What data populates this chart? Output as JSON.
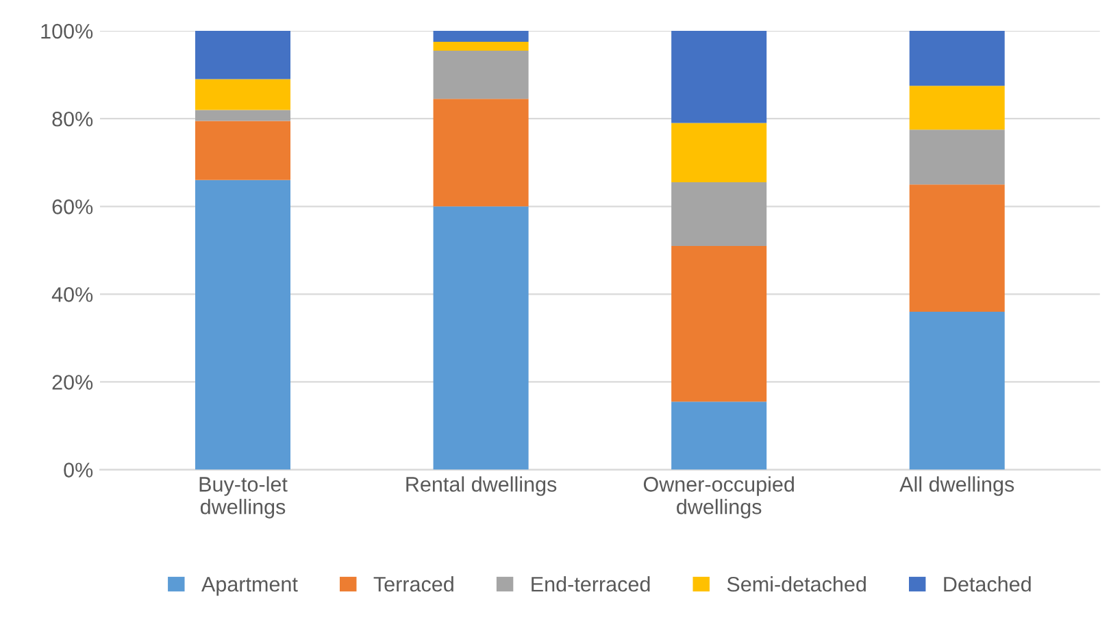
{
  "chart_data": {
    "type": "bar",
    "stacked": true,
    "categories": [
      "Buy-to-let\ndwellings",
      "Rental dwellings",
      "Owner-occupied\ndwellings",
      "All dwellings"
    ],
    "series": [
      {
        "name": "Apartment",
        "color": "#5b9bd5",
        "values": [
          66,
          60,
          15.5,
          36
        ]
      },
      {
        "name": "Terraced",
        "color": "#ed7d31",
        "values": [
          13.5,
          24.5,
          35.5,
          29
        ]
      },
      {
        "name": "End-terraced",
        "color": "#a5a5a5",
        "values": [
          2.5,
          11,
          14.5,
          12.5
        ]
      },
      {
        "name": "Semi-detached",
        "color": "#ffc000",
        "values": [
          7,
          2,
          13.5,
          10
        ]
      },
      {
        "name": "Detached",
        "color": "#4472c4",
        "values": [
          11,
          2.5,
          21,
          12.5
        ]
      }
    ],
    "ylim": [
      0,
      100
    ],
    "yticks": [
      {
        "value": 0,
        "label": "0%"
      },
      {
        "value": 20,
        "label": "20%"
      },
      {
        "value": 40,
        "label": "40%"
      },
      {
        "value": 60,
        "label": "60%"
      },
      {
        "value": 80,
        "label": "80%"
      },
      {
        "value": 100,
        "label": "100%"
      }
    ],
    "grid": "y",
    "legend": "bottom"
  }
}
